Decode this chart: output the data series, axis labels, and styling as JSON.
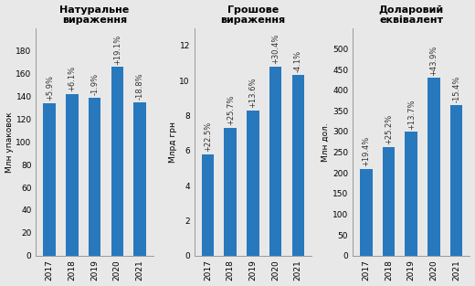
{
  "years": [
    "2017",
    "2018",
    "2019",
    "2020",
    "2021"
  ],
  "natural": {
    "values": [
      134,
      142,
      139,
      166,
      135
    ],
    "growth": [
      "+5.9%",
      "+6.1%",
      "-1.9%",
      "+19.1%",
      "-18.8%"
    ],
    "title": "Натуральне\nвираження",
    "ylabel": "Млн упаковок",
    "ylim": [
      0,
      200
    ],
    "yticks": [
      0,
      20,
      40,
      60,
      80,
      100,
      120,
      140,
      160,
      180
    ]
  },
  "monetary": {
    "values": [
      5.8,
      7.3,
      8.3,
      10.8,
      10.35
    ],
    "growth": [
      "+22.5%",
      "+25.7%",
      "+13.6%",
      "+30.4%",
      "-4.1%"
    ],
    "title": "Грошове\nвираження",
    "ylabel": "Млрд грн",
    "ylim": [
      0,
      13
    ],
    "yticks": [
      0,
      2,
      4,
      6,
      8,
      10,
      12
    ]
  },
  "dollar": {
    "values": [
      210,
      263,
      299,
      430,
      364
    ],
    "growth": [
      "+19.4%",
      "+25.2%",
      "+13.7%",
      "+43.9%",
      "-15.4%"
    ],
    "title": "Доларовий\nеквівалент",
    "ylabel": "Млн дол.",
    "ylim": [
      0,
      550
    ],
    "yticks": [
      0,
      50,
      100,
      150,
      200,
      250,
      300,
      350,
      400,
      450,
      500
    ]
  },
  "bar_color": "#2878be",
  "bar_width": 0.55,
  "label_color": "#333333",
  "font_size_title": 8.0,
  "font_size_label": 6.0,
  "font_size_tick": 6.5,
  "font_size_ylabel": 6.5,
  "bg_color": "#e8e8e8"
}
